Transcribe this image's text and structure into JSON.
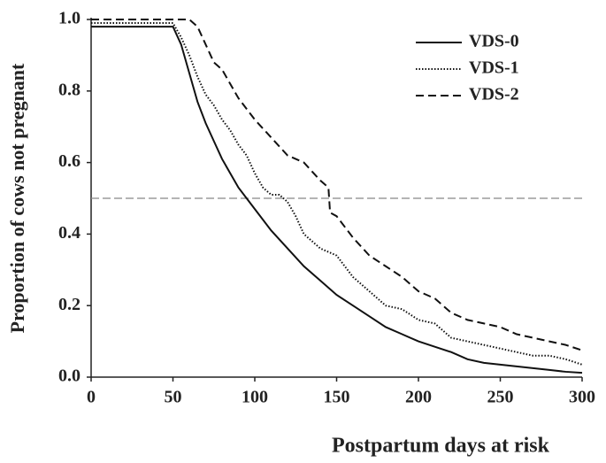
{
  "chart_data": {
    "type": "line",
    "ylabel": "Proportion of cows not pregnant",
    "xlabel": "Postpartum days at risk",
    "xlim": [
      0,
      300
    ],
    "xticks": [
      0,
      50,
      100,
      150,
      200,
      250,
      300
    ],
    "ylim": [
      0,
      1
    ],
    "yticks": [
      {
        "value": 0,
        "label": "0.0"
      },
      {
        "value": 0.2,
        "label": "0.2"
      },
      {
        "value": 0.4,
        "label": "0.4"
      },
      {
        "value": 0.6,
        "label": "0.6"
      },
      {
        "value": 0.8,
        "label": "0.8"
      },
      {
        "value": 1,
        "label": "1.0"
      }
    ],
    "hline": 0.5,
    "legend": "upper right",
    "series": [
      {
        "name": "VDS-0",
        "color": "#111111",
        "dash": "solid",
        "x": [
          0,
          50,
          55,
          60,
          65,
          70,
          75,
          80,
          85,
          90,
          95,
          100,
          110,
          120,
          130,
          140,
          150,
          160,
          170,
          180,
          190,
          200,
          210,
          220,
          230,
          240,
          250,
          260,
          270,
          280,
          290,
          300
        ],
        "values": [
          0.98,
          0.98,
          0.93,
          0.85,
          0.77,
          0.71,
          0.66,
          0.61,
          0.57,
          0.53,
          0.5,
          0.47,
          0.41,
          0.36,
          0.31,
          0.27,
          0.23,
          0.2,
          0.17,
          0.14,
          0.12,
          0.1,
          0.085,
          0.07,
          0.05,
          0.04,
          0.035,
          0.03,
          0.025,
          0.02,
          0.015,
          0.012
        ]
      },
      {
        "name": "VDS-1",
        "color": "#111111",
        "dash": "dot",
        "x": [
          0,
          50,
          55,
          60,
          65,
          70,
          75,
          80,
          85,
          90,
          95,
          100,
          105,
          110,
          115,
          120,
          125,
          130,
          140,
          150,
          160,
          170,
          180,
          190,
          200,
          210,
          220,
          230,
          240,
          250,
          260,
          270,
          280,
          290,
          300
        ],
        "values": [
          0.99,
          0.99,
          0.95,
          0.9,
          0.84,
          0.79,
          0.76,
          0.72,
          0.69,
          0.65,
          0.62,
          0.57,
          0.53,
          0.51,
          0.51,
          0.49,
          0.45,
          0.4,
          0.36,
          0.34,
          0.28,
          0.24,
          0.2,
          0.19,
          0.16,
          0.15,
          0.11,
          0.1,
          0.09,
          0.08,
          0.07,
          0.06,
          0.06,
          0.05,
          0.035
        ]
      },
      {
        "name": "VDS-2",
        "color": "#111111",
        "dash": "dash",
        "x": [
          0,
          60,
          65,
          70,
          75,
          80,
          85,
          90,
          95,
          100,
          110,
          120,
          130,
          140,
          145,
          146,
          150,
          160,
          170,
          180,
          190,
          200,
          210,
          220,
          230,
          240,
          250,
          260,
          270,
          280,
          290,
          300
        ],
        "values": [
          1,
          1,
          0.98,
          0.93,
          0.88,
          0.86,
          0.82,
          0.78,
          0.75,
          0.72,
          0.67,
          0.62,
          0.6,
          0.55,
          0.53,
          0.46,
          0.45,
          0.39,
          0.34,
          0.31,
          0.28,
          0.24,
          0.22,
          0.18,
          0.16,
          0.15,
          0.14,
          0.12,
          0.11,
          0.1,
          0.09,
          0.075
        ]
      }
    ]
  }
}
